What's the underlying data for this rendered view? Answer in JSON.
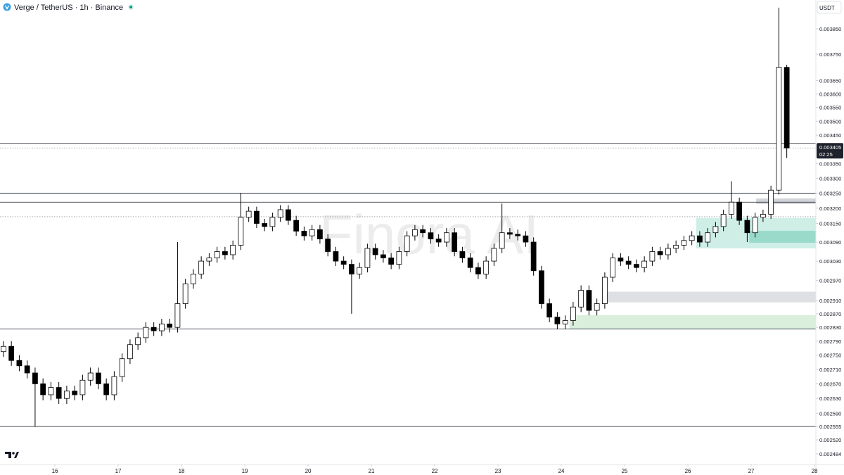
{
  "chart_data": {
    "type": "candlestick",
    "title": "Verge / TetherUS · 1h · Binance",
    "currency": "USDT",
    "watermark": "Finora AI",
    "log_scale": true,
    "up_color": "#ffffff",
    "down_color": "#000000",
    "edge_color": "#000000",
    "xlim": [
      15.133,
      28.022
    ],
    "xticks": [
      16,
      17,
      18,
      19,
      20,
      21,
      22,
      23,
      24,
      25,
      26,
      27,
      28
    ],
    "ylim": [
      0.002457,
      0.003966
    ],
    "yticks": [
      {
        "value": 0.00385,
        "label": "0.003850"
      },
      {
        "value": 0.00375,
        "label": "0.003750"
      },
      {
        "value": 0.00365,
        "label": "0.003650"
      },
      {
        "value": 0.0036,
        "label": "0.003600"
      },
      {
        "value": 0.00355,
        "label": "0.003550"
      },
      {
        "value": 0.0035,
        "label": "0.003500"
      },
      {
        "value": 0.00345,
        "label": "0.003450"
      },
      {
        "value": 0.00335,
        "label": "0.003350"
      },
      {
        "value": 0.0033,
        "label": "0.003300"
      },
      {
        "value": 0.00325,
        "label": "0.003250"
      },
      {
        "value": 0.0032,
        "label": "0.003200"
      },
      {
        "value": 0.00315,
        "label": "0.003150"
      },
      {
        "value": 0.00309,
        "label": "0.003090"
      },
      {
        "value": 0.00303,
        "label": "0.003030"
      },
      {
        "value": 0.00297,
        "label": "0.002970"
      },
      {
        "value": 0.00291,
        "label": "0.002910"
      },
      {
        "value": 0.00287,
        "label": "0.002870"
      },
      {
        "value": 0.00283,
        "label": "0.002830"
      },
      {
        "value": 0.00279,
        "label": "0.002790"
      },
      {
        "value": 0.00275,
        "label": "0.002750"
      },
      {
        "value": 0.00271,
        "label": "0.002710"
      },
      {
        "value": 0.00267,
        "label": "0.002670"
      },
      {
        "value": 0.00263,
        "label": "0.002630"
      },
      {
        "value": 0.00259,
        "label": "0.002590"
      },
      0.002555,
      {
        "value": 0.00252,
        "label": "0.002520"
      },
      0.002484
    ],
    "last_price": 0.003405,
    "countdown": "02:25",
    "levels": [
      {
        "value": 0.003421,
        "style": "solid"
      },
      {
        "value": 0.003405,
        "style": "dotted"
      },
      {
        "value": 0.00325,
        "style": "solid"
      },
      {
        "value": 0.00322,
        "style": "solid"
      },
      {
        "value": 0.003172,
        "style": "dotted"
      },
      {
        "value": 0.002825,
        "style": "solid"
      },
      {
        "value": 0.002555,
        "style": "solid"
      }
    ],
    "zones": [
      {
        "x0": 27.08,
        "from": 0.003214,
        "to": 0.003232,
        "color": "#c9cbd1"
      },
      {
        "x0": 24.69,
        "from": 0.002904,
        "to": 0.002936,
        "color": "#d9dadf"
      },
      {
        "x0": 24.13,
        "from": 0.002825,
        "to": 0.002866,
        "color": "#d3ecd6"
      },
      {
        "x0": 26.13,
        "from": 0.00307,
        "to": 0.003168,
        "color": "#c6ebe2"
      },
      {
        "x0": 26.97,
        "from": 0.003088,
        "to": 0.003126,
        "color": "#8fd6c6"
      }
    ],
    "x": [
      15.1875,
      15.3125,
      15.4375,
      15.5625,
      15.6875,
      15.8125,
      15.9375,
      16.0625,
      16.1875,
      16.3125,
      16.4375,
      16.5625,
      16.6875,
      16.8125,
      16.9375,
      17.0625,
      17.1875,
      17.3125,
      17.4375,
      17.5625,
      17.6875,
      17.8125,
      17.9375,
      18.0625,
      18.1875,
      18.3125,
      18.4375,
      18.5625,
      18.6875,
      18.8125,
      18.9375,
      19.0625,
      19.1875,
      19.3125,
      19.4375,
      19.5625,
      19.6875,
      19.8125,
      19.9375,
      20.0625,
      20.1875,
      20.3125,
      20.4375,
      20.5625,
      20.6875,
      20.8125,
      20.9375,
      21.0625,
      21.1875,
      21.3125,
      21.4375,
      21.5625,
      21.6875,
      21.8125,
      21.9375,
      22.0625,
      22.1875,
      22.3125,
      22.4375,
      22.5625,
      22.6875,
      22.8125,
      22.9375,
      23.0625,
      23.1875,
      23.3125,
      23.4375,
      23.5625,
      23.6875,
      23.8125,
      23.9375,
      24.0625,
      24.1875,
      24.3125,
      24.4375,
      24.5625,
      24.6875,
      24.8125,
      24.9375,
      25.0625,
      25.1875,
      25.3125,
      25.4375,
      25.5625,
      25.6875,
      25.8125,
      25.9375,
      26.0625,
      26.1875,
      26.3125,
      26.4375,
      26.5625,
      26.6875,
      26.8125,
      26.9375,
      27.0625,
      27.1875,
      27.3125,
      27.4375,
      27.5625
    ],
    "open": [
      0.00276,
      0.002775,
      0.002735,
      0.00272,
      0.0027,
      0.00267,
      0.00264,
      0.00266,
      0.00263,
      0.00265,
      0.00264,
      0.00268,
      0.0027,
      0.00267,
      0.00264,
      0.00269,
      0.00274,
      0.00278,
      0.0028,
      0.00283,
      0.00282,
      0.00284,
      0.00283,
      0.0029,
      0.00296,
      0.00299,
      0.00303,
      0.00304,
      0.00306,
      0.00305,
      0.00308,
      0.00317,
      0.00319,
      0.00315,
      0.00314,
      0.00317,
      0.003195,
      0.00316,
      0.003125,
      0.00311,
      0.00313,
      0.0031,
      0.00306,
      0.00303,
      0.00302,
      0.00299,
      0.00301,
      0.00307,
      0.00305,
      0.00304,
      0.00302,
      0.00306,
      0.00311,
      0.00313,
      0.00312,
      0.0031,
      0.00309,
      0.00312,
      0.00306,
      0.00304,
      0.00301,
      0.00299,
      0.00303,
      0.00307,
      0.00312,
      0.003115,
      0.00311,
      0.00309,
      0.003,
      0.0029,
      0.00286,
      0.00284,
      0.00285,
      0.00289,
      0.00294,
      0.00288,
      0.0029,
      0.00298,
      0.00304,
      0.00303,
      0.00302,
      0.00301,
      0.00303,
      0.00306,
      0.00305,
      0.00307,
      0.00308,
      0.003095,
      0.00311,
      0.00309,
      0.00312,
      0.00314,
      0.00318,
      0.00322,
      0.00316,
      0.00312,
      0.00317,
      0.00318,
      0.00326,
      0.0037
    ],
    "high": [
      0.00279,
      0.00279,
      0.00275,
      0.002735,
      0.002715,
      0.002685,
      0.002675,
      0.002675,
      0.002665,
      0.002665,
      0.002695,
      0.002715,
      0.002715,
      0.002685,
      0.002705,
      0.002755,
      0.002795,
      0.002815,
      0.002845,
      0.002845,
      0.002855,
      0.002855,
      0.00309,
      0.002975,
      0.003005,
      0.003045,
      0.003055,
      0.003075,
      0.003075,
      0.003095,
      0.00325,
      0.003205,
      0.003205,
      0.003165,
      0.003185,
      0.00321,
      0.00321,
      0.003175,
      0.00314,
      0.003145,
      0.003145,
      0.003115,
      0.003075,
      0.003045,
      0.003035,
      0.003025,
      0.003085,
      0.003085,
      0.003065,
      0.003055,
      0.003075,
      0.003125,
      0.003145,
      0.003145,
      0.003135,
      0.003115,
      0.003135,
      0.003135,
      0.003075,
      0.003055,
      0.003025,
      0.003045,
      0.003085,
      0.003215,
      0.003135,
      0.00313,
      0.003125,
      0.003105,
      0.003015,
      0.002915,
      0.002875,
      0.002865,
      0.002905,
      0.002955,
      0.002955,
      0.002915,
      0.002995,
      0.003055,
      0.003055,
      0.003045,
      0.003035,
      0.003045,
      0.003075,
      0.003075,
      0.003085,
      0.003095,
      0.00311,
      0.003125,
      0.003125,
      0.003135,
      0.003155,
      0.003195,
      0.00329,
      0.003235,
      0.003175,
      0.003185,
      0.003195,
      0.003275,
      0.003935,
      0.00371
    ],
    "low": [
      0.002745,
      0.00272,
      0.002705,
      0.002685,
      0.002555,
      0.002625,
      0.002625,
      0.002615,
      0.002615,
      0.002625,
      0.002625,
      0.002665,
      0.002655,
      0.002625,
      0.002625,
      0.002675,
      0.002725,
      0.002765,
      0.002785,
      0.002805,
      0.002805,
      0.002815,
      0.002815,
      0.002885,
      0.002945,
      0.002975,
      0.003015,
      0.003025,
      0.003035,
      0.003035,
      0.003065,
      0.003155,
      0.003135,
      0.003125,
      0.003125,
      0.003155,
      0.003145,
      0.00311,
      0.003095,
      0.003095,
      0.003085,
      0.003045,
      0.003015,
      0.003005,
      0.00287,
      0.002975,
      0.002995,
      0.003035,
      0.003025,
      0.003005,
      0.003005,
      0.003045,
      0.003095,
      0.003105,
      0.003085,
      0.003075,
      0.003075,
      0.003045,
      0.003025,
      0.002995,
      0.002975,
      0.002975,
      0.003015,
      0.003055,
      0.0031,
      0.003095,
      0.003075,
      0.002985,
      0.002885,
      0.002845,
      0.002825,
      0.002825,
      0.002835,
      0.002875,
      0.002865,
      0.002865,
      0.002885,
      0.002965,
      0.003015,
      0.003005,
      0.002995,
      0.002995,
      0.003015,
      0.003035,
      0.003035,
      0.003055,
      0.003065,
      0.00308,
      0.003075,
      0.003075,
      0.003105,
      0.003125,
      0.003165,
      0.003145,
      0.00309,
      0.003105,
      0.003155,
      0.003165,
      0.003245,
      0.00337
    ],
    "close": [
      0.002775,
      0.002735,
      0.00272,
      0.0027,
      0.00267,
      0.00264,
      0.00266,
      0.00263,
      0.00265,
      0.00264,
      0.00268,
      0.0027,
      0.00267,
      0.00264,
      0.00269,
      0.00274,
      0.00278,
      0.0028,
      0.00283,
      0.00282,
      0.00284,
      0.00283,
      0.0029,
      0.00296,
      0.00299,
      0.00303,
      0.00304,
      0.00306,
      0.00305,
      0.00308,
      0.00317,
      0.00319,
      0.00315,
      0.00314,
      0.00317,
      0.003195,
      0.00316,
      0.003125,
      0.00311,
      0.00313,
      0.0031,
      0.00306,
      0.00303,
      0.00302,
      0.00299,
      0.00301,
      0.00307,
      0.00305,
      0.00304,
      0.00302,
      0.00306,
      0.00311,
      0.00313,
      0.00312,
      0.0031,
      0.00309,
      0.00312,
      0.00306,
      0.00304,
      0.00301,
      0.00299,
      0.00303,
      0.00307,
      0.00312,
      0.003115,
      0.00311,
      0.00309,
      0.003,
      0.0029,
      0.00286,
      0.00284,
      0.00285,
      0.00289,
      0.00294,
      0.00288,
      0.0029,
      0.00298,
      0.00304,
      0.00303,
      0.00302,
      0.00301,
      0.00303,
      0.00306,
      0.00305,
      0.00307,
      0.00308,
      0.003095,
      0.00311,
      0.00309,
      0.00312,
      0.00314,
      0.00318,
      0.00322,
      0.00316,
      0.00312,
      0.00317,
      0.00318,
      0.00326,
      0.0037,
      0.003405
    ]
  }
}
